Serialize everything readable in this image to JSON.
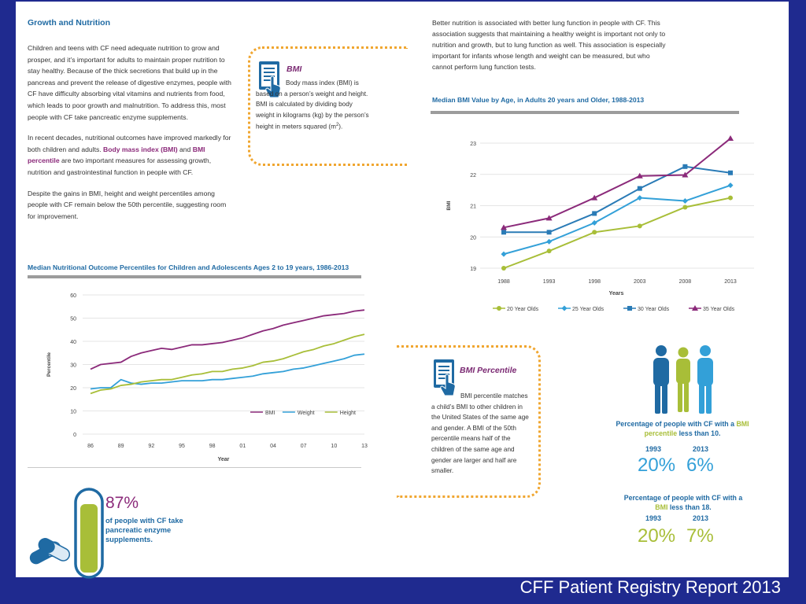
{
  "growth": {
    "title": "Growth and Nutrition",
    "p1": "Children and teens with CF need adequate nutrition to grow and prosper, and it’s important for adults to maintain proper nutrition to stay healthy. Because of the thick secretions that build up in the pancreas and prevent the release of digestive enzymes, people with CF have difficulty absorbing vital vitamins and nutrients from food, which leads to poor growth and malnutrition. To address this, most people with CF take pancreatic enzyme supplements.",
    "p2_a": "In recent decades, nutritional outcomes have improved markedly for both children and adults.",
    "p2_bmi": "Body mass index (BMI)",
    "p2_and": "and",
    "p2_pct": "BMI percentile",
    "p2_b": "are two important measures for assessing growth, nutrition and gastrointestinal function in people with CF.",
    "p3": "Despite the gains in BMI, height and weight percentiles among people with CF remain below the 50th percentile, suggesting room for improvement."
  },
  "bmi_callout": {
    "title": "BMI",
    "text_a": "Body mass index (BMI) is based on a person’s weight and height. BMI is calculated by dividing body weight in kilograms (kg) by the person’s height in meters squared (m",
    "text_sup": "2",
    "text_b": ")."
  },
  "lung_text": "Better nutrition is associated with better lung function in people with CF. This association suggests that maintaining a healthy weight is important not only to nutrition and growth, but to lung function as well. This association is especially important for infants whose length and weight can be measured, but who cannot perform lung function tests.",
  "pct_callout": {
    "title": "BMI Percentile",
    "text": "BMI percentile matches a child’s BMI to other children in the United States of the same age and gender. A BMI of the 50th percentile means half of the children of the same age and gender are larger and half are smaller."
  },
  "enzyme": {
    "percent": "87%",
    "text": "of people with CF take pancreatic enzyme supplements.",
    "fraction": 0.87
  },
  "stats": {
    "s1_caption_a": "Percentage of people with CF with a",
    "s1_caption_hl": "BMI percentile",
    "s1_caption_b": "less than 10.",
    "s2_caption_a": "Percentage of people with CF with a",
    "s2_caption_hl": "BMI",
    "s2_caption_b": "less than 18.",
    "year1": "1993",
    "year2": "2013",
    "s1_v1": "20%",
    "s1_v2": "6%",
    "s2_v1": "20%",
    "s2_v2": "7%"
  },
  "footer": "CFF Patient Registry Report 2013",
  "colors": {
    "bmi": "#8b2a7a",
    "weight": "#33a0d8",
    "height": "#a8be38",
    "y30": "#2a7bb6",
    "title_blue": "#1f6aa3",
    "accent_orange": "#f0a630",
    "slide_bg": "#1f2a8f"
  },
  "chart_data": [
    {
      "type": "line",
      "title": "Median Nutritional Outcome Percentiles for Children and Adolescents Ages 2 to 19 years, 1986-2013",
      "xlabel": "Year",
      "ylabel": "Percentile",
      "x": [
        1986,
        1987,
        1988,
        1989,
        1990,
        1991,
        1992,
        1993,
        1994,
        1995,
        1996,
        1997,
        1998,
        1999,
        2000,
        2001,
        2002,
        2003,
        2004,
        2005,
        2006,
        2007,
        2008,
        2009,
        2010,
        2011,
        2012,
        2013
      ],
      "xticks": [
        1986,
        1989,
        1992,
        1995,
        1998,
        2001,
        2004,
        2007,
        2010,
        2013
      ],
      "xtick_labels": [
        "86",
        "89",
        "92",
        "95",
        "98",
        "01",
        "04",
        "07",
        "10",
        "13"
      ],
      "ylim": [
        0,
        60
      ],
      "yticks": [
        0,
        10,
        20,
        30,
        40,
        50,
        60
      ],
      "series": [
        {
          "name": "BMI",
          "values": [
            28,
            30,
            30.5,
            31,
            33.5,
            35,
            36,
            37,
            36.5,
            37.5,
            38.5,
            38.5,
            39,
            39.5,
            40.5,
            41.5,
            43,
            44.5,
            45.5,
            47,
            48,
            49,
            50,
            51,
            51.5,
            52,
            53,
            53.5
          ]
        },
        {
          "name": "Weight",
          "values": [
            19.5,
            20,
            20,
            23.5,
            22,
            21.5,
            22,
            22,
            22.5,
            23,
            23,
            23,
            23.5,
            23.5,
            24,
            24.5,
            25,
            26,
            26.5,
            27,
            28,
            28.5,
            29.5,
            30.5,
            31.5,
            32.5,
            34,
            34.5
          ]
        },
        {
          "name": "Height",
          "values": [
            17.5,
            19,
            19.5,
            21,
            21.5,
            22.5,
            23,
            23.5,
            23.5,
            24.5,
            25.5,
            26,
            27,
            27,
            28,
            28.5,
            29.5,
            31,
            31.5,
            32.5,
            34,
            35.5,
            36.5,
            38,
            39,
            40.5,
            42,
            43
          ]
        }
      ],
      "legend": "bottom-right"
    },
    {
      "type": "line",
      "title": "Median BMI Value by Age, in Adults 20 years and Older, 1988-2013",
      "xlabel": "Years",
      "ylabel": "BMI",
      "x": [
        "1988",
        "1993",
        "1998",
        "2003",
        "2008",
        "2013"
      ],
      "ylim": [
        19,
        23
      ],
      "yticks": [
        19,
        20,
        21,
        22,
        23
      ],
      "series": [
        {
          "name": "20 Year Olds",
          "marker": "circle",
          "values": [
            19.0,
            19.55,
            20.15,
            20.35,
            20.95,
            21.25
          ]
        },
        {
          "name": "25 Year Olds",
          "marker": "diamond",
          "values": [
            19.45,
            19.85,
            20.45,
            21.25,
            21.15,
            21.65
          ]
        },
        {
          "name": "30 Year Olds",
          "marker": "square",
          "values": [
            20.15,
            20.15,
            20.75,
            21.55,
            22.25,
            22.05
          ]
        },
        {
          "name": "35 Year Olds",
          "marker": "triangle",
          "values": [
            20.3,
            20.6,
            21.25,
            21.95,
            21.98,
            23.15
          ]
        }
      ],
      "legend": "bottom"
    }
  ]
}
